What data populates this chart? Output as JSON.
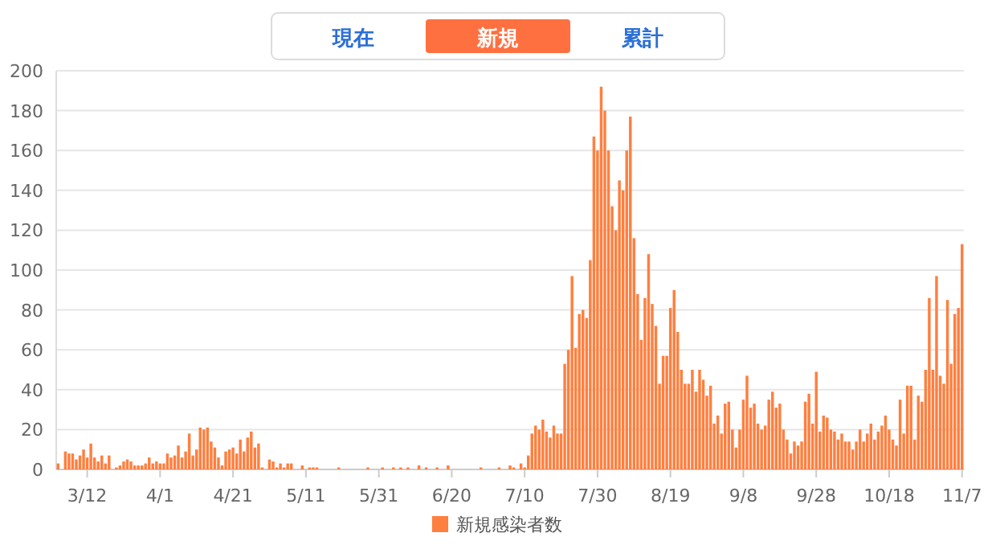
{
  "chart_data": {
    "type": "bar",
    "annotations": [
      "現在",
      "新規",
      "累計"
    ],
    "categories": [
      null,
      null,
      null,
      null,
      null,
      null,
      null,
      null,
      "3/12",
      null,
      null,
      null,
      null,
      null,
      null,
      null,
      null,
      null,
      null,
      null,
      null,
      null,
      null,
      null,
      null,
      null,
      null,
      null,
      "4/1",
      null,
      null,
      null,
      null,
      null,
      null,
      null,
      null,
      null,
      null,
      null,
      null,
      null,
      null,
      null,
      null,
      null,
      null,
      null,
      "4/21",
      null,
      null,
      null,
      null,
      null,
      null,
      null,
      null,
      null,
      null,
      null,
      null,
      null,
      null,
      null,
      null,
      null,
      null,
      null,
      "5/11",
      null,
      null,
      null,
      null,
      null,
      null,
      null,
      null,
      null,
      null,
      null,
      null,
      null,
      null,
      null,
      null,
      null,
      null,
      null,
      "5/31",
      null,
      null,
      null,
      null,
      null,
      null,
      null,
      null,
      null,
      null,
      null,
      null,
      null,
      null,
      null,
      null,
      null,
      null,
      null,
      "6/20",
      null,
      null,
      null,
      null,
      null,
      null,
      null,
      null,
      null,
      null,
      null,
      null,
      null,
      null,
      null,
      null,
      null,
      null,
      null,
      "7/10",
      null,
      null,
      null,
      null,
      null,
      null,
      null,
      null,
      null,
      null,
      null,
      null,
      null,
      null,
      null,
      null,
      null,
      null,
      null,
      "7/30",
      null,
      null,
      null,
      null,
      null,
      null,
      null,
      null,
      null,
      null,
      null,
      null,
      null,
      null,
      null,
      null,
      null,
      null,
      null,
      "8/19",
      null,
      null,
      null,
      null,
      null,
      null,
      null,
      null,
      null,
      null,
      null,
      null,
      null,
      null,
      null,
      null,
      null,
      null,
      null,
      "9/8",
      null,
      null,
      null,
      null,
      null,
      null,
      null,
      null,
      null,
      null,
      null,
      null,
      null,
      null,
      null,
      null,
      null,
      null,
      null,
      "9/28",
      null,
      null,
      null,
      null,
      null,
      null,
      null,
      null,
      null,
      null,
      null,
      null,
      null,
      null,
      null,
      null,
      null,
      null,
      null,
      "10/18",
      null,
      null,
      null,
      null,
      null,
      null,
      null,
      null,
      null,
      null,
      null,
      null,
      null,
      null,
      null,
      null,
      null,
      null,
      null,
      "11/7"
    ],
    "series": [
      {
        "name": "新規感染者数",
        "color": "#ff7f3f",
        "values": [
          3,
          0,
          9,
          8,
          8,
          5,
          7,
          10,
          6,
          13,
          6,
          4,
          7,
          3,
          7,
          0,
          1,
          2,
          4,
          5,
          4,
          2,
          2,
          2,
          3,
          6,
          3,
          4,
          3,
          3,
          8,
          6,
          7,
          12,
          6,
          9,
          18,
          7,
          10,
          21,
          20,
          21,
          14,
          11,
          6,
          2,
          9,
          10,
          11,
          8,
          15,
          9,
          16,
          19,
          11,
          13,
          1,
          0,
          5,
          4,
          1,
          3,
          1,
          3,
          3,
          0,
          0,
          2,
          0,
          1,
          1,
          1,
          0,
          0,
          0,
          0,
          0,
          1,
          0,
          0,
          0,
          0,
          0,
          0,
          0,
          1,
          0,
          0,
          0,
          1,
          0,
          0,
          1,
          0,
          1,
          0,
          1,
          0,
          0,
          2,
          0,
          1,
          0,
          0,
          1,
          0,
          0,
          2,
          0,
          0,
          0,
          0,
          0,
          0,
          0,
          0,
          1,
          0,
          0,
          0,
          0,
          1,
          0,
          0,
          2,
          1,
          0,
          3,
          1,
          7,
          18,
          22,
          20,
          25,
          19,
          16,
          22,
          18,
          18,
          53,
          60,
          97,
          61,
          78,
          80,
          76,
          105,
          167,
          160,
          192,
          180,
          160,
          132,
          120,
          145,
          140,
          160,
          177,
          116,
          88,
          65,
          86,
          108,
          83,
          72,
          43,
          57,
          57,
          81,
          90,
          69,
          50,
          43,
          43,
          50,
          39,
          50,
          45,
          37,
          42,
          23,
          27,
          18,
          33,
          34,
          20,
          11,
          20,
          35,
          47,
          31,
          33,
          23,
          20,
          22,
          35,
          39,
          31,
          33,
          20,
          15,
          8,
          14,
          12,
          14,
          34,
          38,
          23,
          49,
          19,
          27,
          26,
          20,
          19,
          15,
          18,
          14,
          14,
          10,
          14,
          20,
          14,
          18,
          23,
          15,
          19,
          22,
          27,
          20,
          15,
          12,
          35,
          18,
          42,
          42,
          15,
          37,
          34,
          50,
          86,
          50,
          97,
          47,
          43,
          85,
          53,
          78,
          81,
          113
        ]
      }
    ],
    "ylim": [
      0,
      200
    ],
    "yticks": [
      0,
      20,
      40,
      60,
      80,
      100,
      120,
      140,
      160,
      180,
      200
    ],
    "grid": "y",
    "legend": "bottom"
  }
}
